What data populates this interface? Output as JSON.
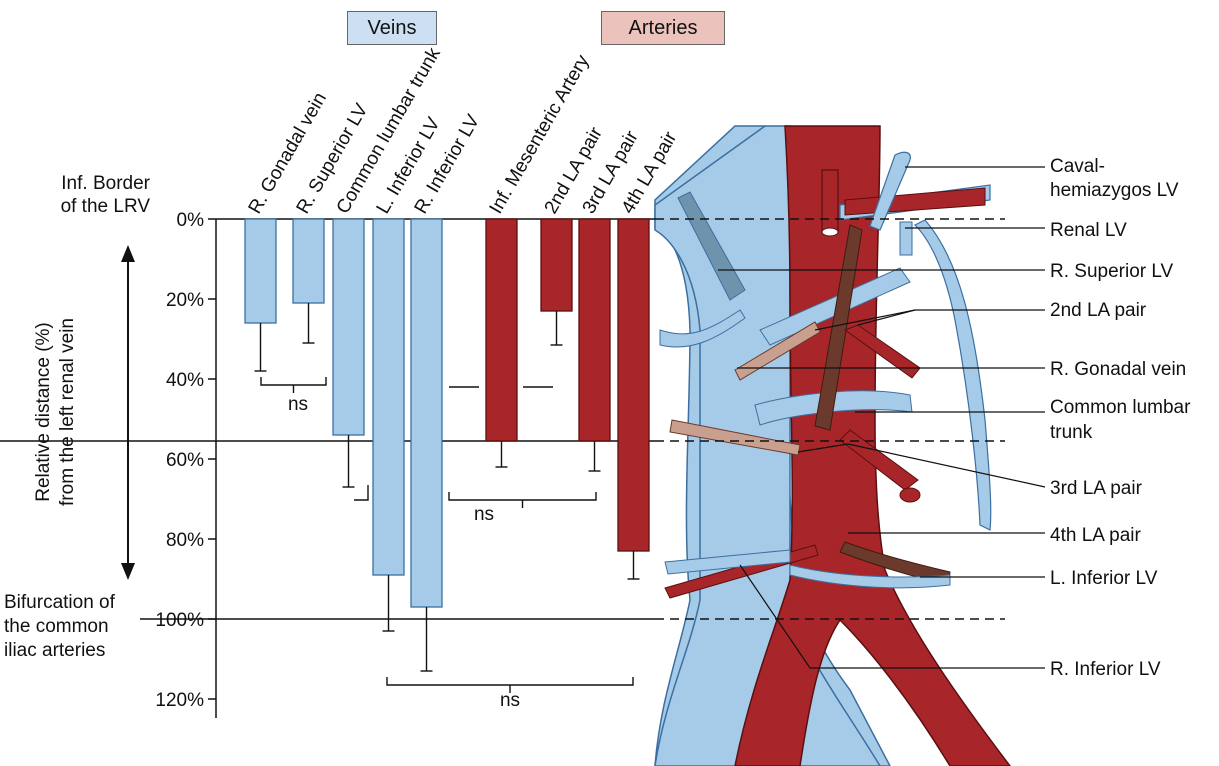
{
  "legend": {
    "veins": "Veins",
    "arteries": "Arteries"
  },
  "colors": {
    "vein": "#a6cbe8",
    "artery": "#a8262a",
    "vein_legend_bg": "#cde0f3",
    "artery_legend_bg": "#ecc3bc",
    "vein_stroke": "#3b6fa0",
    "artery_stroke": "#5a0f10"
  },
  "axis": {
    "ylabel_line1": "Relative distance (%)",
    "ylabel_line2": "from the left renal vein",
    "ticks": [
      "0%",
      "20%",
      "40%",
      "60%",
      "80%",
      "100%",
      "120%"
    ],
    "tick_values": [
      0,
      20,
      40,
      60,
      80,
      100,
      120
    ],
    "top_label": [
      "Inf. Border",
      "of the LRV"
    ],
    "bottom_label": [
      "Bifurcation of",
      "the common",
      "iliac arteries"
    ]
  },
  "chart_data": {
    "type": "bar",
    "orientation": "vertical-downward",
    "ylim": [
      0,
      120
    ],
    "reference_lines": [
      0,
      55.5,
      100
    ],
    "series": [
      {
        "name": "Veins",
        "categories": [
          "R. Gonadal vein",
          "R. Superior LV",
          "Common lumbar trunk",
          "L. Inferior LV",
          "R. Inferior LV"
        ],
        "values": [
          26,
          21,
          54,
          89,
          97
        ],
        "error": [
          12,
          10,
          13,
          14,
          16
        ]
      },
      {
        "name": "Arteries",
        "categories": [
          "Inf. Mesenteric Artery",
          "2nd LA pair",
          "3rd LA pair",
          "4th LA pair"
        ],
        "values": [
          55.5,
          23,
          55.5,
          83
        ],
        "error": [
          6.5,
          8.5,
          7.5,
          7
        ]
      }
    ],
    "annotations": [
      "ns",
      "ns",
      "ns"
    ]
  },
  "anatomy_labels": [
    "Caval-",
    "hemiazygos LV",
    "Renal LV",
    "R. Superior LV",
    "2nd LA pair",
    "R. Gonadal vein",
    "Common lumbar",
    "trunk",
    "3rd LA pair",
    "4th LA pair",
    "L. Inferior LV",
    "R. Inferior LV"
  ]
}
